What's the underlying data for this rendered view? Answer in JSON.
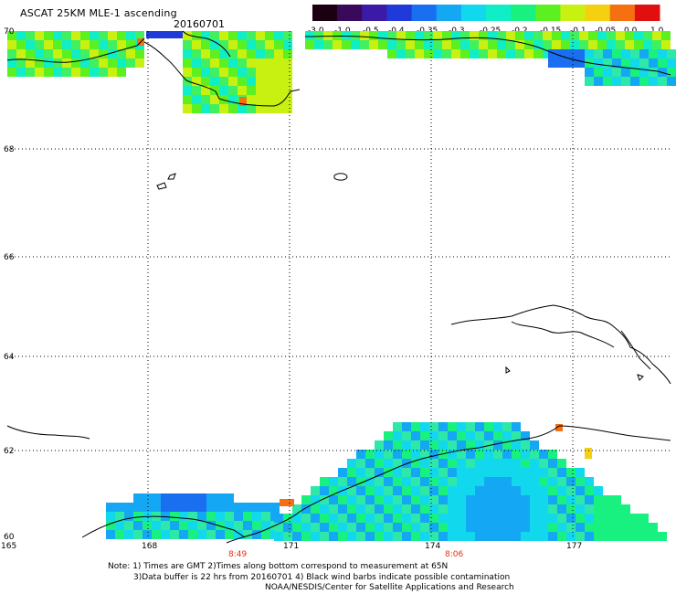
{
  "header": {
    "title": "ASCAT 25KM MLE-1 ascending",
    "date": "20160701"
  },
  "colorbar": {
    "labels": [
      "-3.0",
      "-1.0",
      "-0.5",
      "-0.4",
      "-0.35",
      "-0.3",
      "-0.25",
      "-0.2",
      "-0.15",
      "-0.1",
      "-0.05",
      "0.0",
      "1.0"
    ],
    "colors": [
      "#1a0010",
      "#3a0a5a",
      "#3b1aa8",
      "#1f3ad8",
      "#1a6ff0",
      "#14a8f4",
      "#12d8ee",
      "#10eec8",
      "#18f080",
      "#5cf020",
      "#c8f010",
      "#f4d010",
      "#f47010",
      "#e01010"
    ]
  },
  "map": {
    "lat_labels": [
      "70",
      "68",
      "66",
      "64",
      "62",
      "60"
    ],
    "lon_labels": [
      "165",
      "168",
      "171",
      "174",
      "177"
    ],
    "time_labels": [
      "8:49",
      "8:06"
    ]
  },
  "footer": {
    "line1": "Note: 1) Times are GMT 2)Times along bottom correspond to measurement at 65N",
    "line2": "3)Data buffer is 22 hrs from 20160701 4) Black wind barbs indicate possible contamination",
    "line3": "NOAA/NESDIS/Center for Satellite Applications and Research"
  }
}
